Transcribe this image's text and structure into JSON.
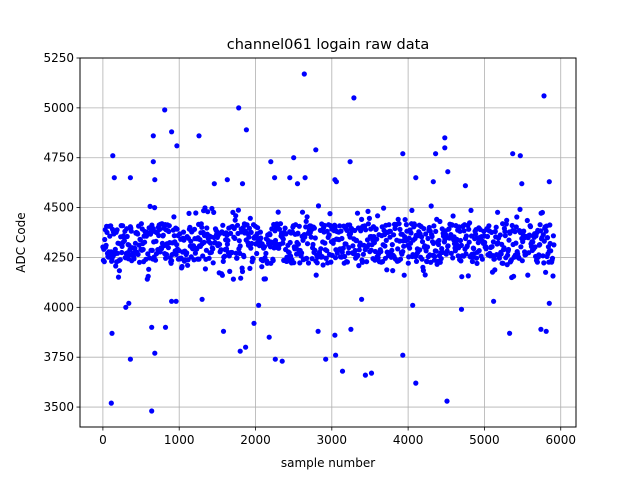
{
  "chart_data": {
    "type": "scatter",
    "title": "channel061 logain raw data",
    "xlabel": "sample number",
    "ylabel": "ADC Code",
    "xlim": [
      -300,
      6200
    ],
    "ylim": [
      3400,
      5250
    ],
    "x_ticks": [
      0,
      1000,
      2000,
      3000,
      4000,
      5000,
      6000
    ],
    "y_ticks": [
      3500,
      3750,
      4000,
      4250,
      4500,
      4750,
      5000,
      5250
    ],
    "grid": true,
    "legend": "none",
    "marker_color": "#0000ff",
    "bulk": {
      "x_range": [
        0,
        5910
      ],
      "dense_band": [
        4220,
        4420
      ],
      "sparse_band": [
        4140,
        4510
      ],
      "center": 4320
    },
    "outliers": [
      {
        "x": 110,
        "y": 3520
      },
      {
        "x": 640,
        "y": 3480
      },
      {
        "x": 4510,
        "y": 3530
      },
      {
        "x": 120,
        "y": 3870
      },
      {
        "x": 360,
        "y": 3740
      },
      {
        "x": 680,
        "y": 3770
      },
      {
        "x": 820,
        "y": 3900
      },
      {
        "x": 640,
        "y": 3900
      },
      {
        "x": 1800,
        "y": 3780
      },
      {
        "x": 1870,
        "y": 3800
      },
      {
        "x": 2260,
        "y": 3740
      },
      {
        "x": 2350,
        "y": 3730
      },
      {
        "x": 2180,
        "y": 3850
      },
      {
        "x": 2920,
        "y": 3740
      },
      {
        "x": 3050,
        "y": 3760
      },
      {
        "x": 3140,
        "y": 3680
      },
      {
        "x": 3440,
        "y": 3660
      },
      {
        "x": 3520,
        "y": 3670
      },
      {
        "x": 3930,
        "y": 3760
      },
      {
        "x": 4100,
        "y": 3620
      },
      {
        "x": 3250,
        "y": 3890
      },
      {
        "x": 5330,
        "y": 3870
      },
      {
        "x": 5740,
        "y": 3890
      },
      {
        "x": 5810,
        "y": 3880
      },
      {
        "x": 1300,
        "y": 4040
      },
      {
        "x": 1580,
        "y": 3880
      },
      {
        "x": 1980,
        "y": 3920
      },
      {
        "x": 300,
        "y": 4000
      },
      {
        "x": 340,
        "y": 4020
      },
      {
        "x": 900,
        "y": 4030
      },
      {
        "x": 960,
        "y": 4030
      },
      {
        "x": 2040,
        "y": 4010
      },
      {
        "x": 2820,
        "y": 3880
      },
      {
        "x": 3040,
        "y": 3860
      },
      {
        "x": 3390,
        "y": 4040
      },
      {
        "x": 4060,
        "y": 4010
      },
      {
        "x": 4700,
        "y": 3990
      },
      {
        "x": 5120,
        "y": 4030
      },
      {
        "x": 5850,
        "y": 4020
      },
      {
        "x": 130,
        "y": 4760
      },
      {
        "x": 150,
        "y": 4650
      },
      {
        "x": 360,
        "y": 4650
      },
      {
        "x": 660,
        "y": 4860
      },
      {
        "x": 660,
        "y": 4730
      },
      {
        "x": 680,
        "y": 4640
      },
      {
        "x": 810,
        "y": 4990
      },
      {
        "x": 900,
        "y": 4880
      },
      {
        "x": 970,
        "y": 4810
      },
      {
        "x": 1260,
        "y": 4860
      },
      {
        "x": 1460,
        "y": 4620
      },
      {
        "x": 1630,
        "y": 4640
      },
      {
        "x": 1780,
        "y": 5000
      },
      {
        "x": 1880,
        "y": 4890
      },
      {
        "x": 1830,
        "y": 4620
      },
      {
        "x": 2200,
        "y": 4730
      },
      {
        "x": 2250,
        "y": 4650
      },
      {
        "x": 2450,
        "y": 4650
      },
      {
        "x": 2500,
        "y": 4750
      },
      {
        "x": 2550,
        "y": 4620
      },
      {
        "x": 2640,
        "y": 5170
      },
      {
        "x": 2650,
        "y": 4650
      },
      {
        "x": 2790,
        "y": 4790
      },
      {
        "x": 3040,
        "y": 4640
      },
      {
        "x": 3060,
        "y": 4630
      },
      {
        "x": 3240,
        "y": 4730
      },
      {
        "x": 3290,
        "y": 5050
      },
      {
        "x": 3930,
        "y": 4770
      },
      {
        "x": 4100,
        "y": 4650
      },
      {
        "x": 4330,
        "y": 4630
      },
      {
        "x": 4360,
        "y": 4770
      },
      {
        "x": 4480,
        "y": 4850
      },
      {
        "x": 4480,
        "y": 4800
      },
      {
        "x": 4520,
        "y": 4680
      },
      {
        "x": 4750,
        "y": 4610
      },
      {
        "x": 5370,
        "y": 4770
      },
      {
        "x": 5470,
        "y": 4760
      },
      {
        "x": 5490,
        "y": 4620
      },
      {
        "x": 5780,
        "y": 5060
      },
      {
        "x": 5850,
        "y": 4630
      }
    ]
  }
}
